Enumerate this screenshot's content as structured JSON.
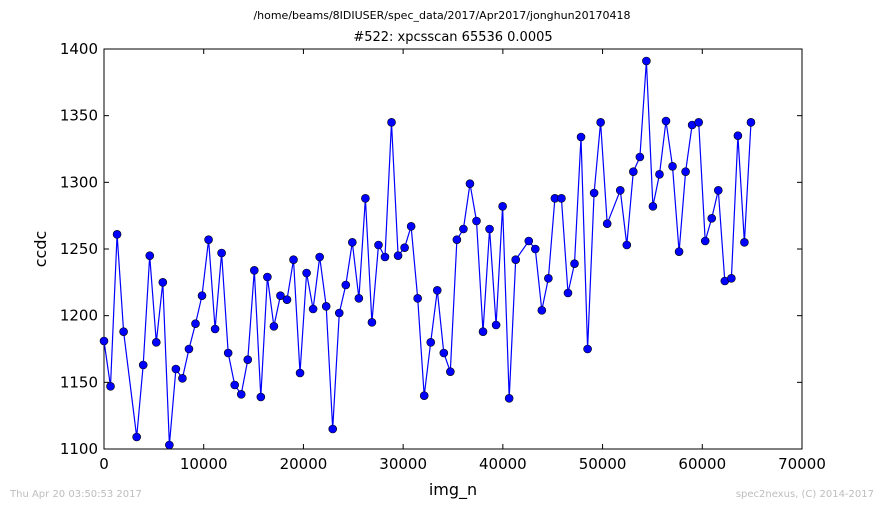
{
  "header": {
    "path": "/home/beams/8IDIUSER/spec_data/2017/Apr2017/jonghun20170418",
    "scan_title": "#522: xpcsscan 65536 0.0005"
  },
  "footer": {
    "timestamp": "Thu Apr 20 03:50:53 2017",
    "credit": "spec2nexus, (C) 2014-2017"
  },
  "chart_data": {
    "type": "line",
    "markers": true,
    "xlabel": "img_n",
    "ylabel": "ccdc",
    "xlim": [
      0,
      70000
    ],
    "ylim": [
      1100,
      1400
    ],
    "xticks": [
      0,
      10000,
      20000,
      30000,
      40000,
      50000,
      60000,
      70000
    ],
    "yticks": [
      1100,
      1150,
      1200,
      1250,
      1300,
      1350,
      1400
    ],
    "grid": false,
    "series_color": "#0000ff",
    "series": [
      {
        "x": [
          0,
          655,
          1311,
          1966,
          3277,
          3932,
          4588,
          5243,
          5898,
          6554,
          7209,
          7864,
          8520,
          9175,
          9830,
          10486,
          11141,
          11796,
          12452,
          13107,
          13763,
          14418,
          15073,
          15729,
          16384,
          17039,
          17695,
          18350,
          19005,
          19661,
          20316,
          20972,
          21627,
          22282,
          22938,
          23593,
          24248,
          24904,
          25559,
          26214,
          26870,
          27525,
          28180,
          28836,
          29491,
          30147,
          30802,
          31457,
          32113,
          32768,
          33423,
          34079,
          34734,
          35389,
          36045,
          36700,
          37356,
          38011,
          38666,
          39322,
          39977,
          40632,
          41288,
          42598,
          43254,
          43909,
          44564,
          45220,
          45875,
          46531,
          47186,
          47841,
          48497,
          49152,
          49807,
          50463,
          51773,
          52429,
          53084,
          53740,
          54395,
          55050,
          55706,
          56361,
          57016,
          57672,
          58327,
          58982,
          59638,
          60293,
          60948,
          61604,
          62259,
          62915,
          63570,
          64225,
          64881
        ],
        "y": [
          1181,
          1147,
          1261,
          1188,
          1109,
          1163,
          1245,
          1180,
          1225,
          1103,
          1160,
          1153,
          1175,
          1194,
          1215,
          1257,
          1190,
          1247,
          1172,
          1148,
          1141,
          1167,
          1234,
          1139,
          1229,
          1192,
          1215,
          1212,
          1242,
          1157,
          1232,
          1205,
          1244,
          1207,
          1115,
          1202,
          1223,
          1255,
          1213,
          1288,
          1195,
          1253,
          1244,
          1345,
          1245,
          1251,
          1267,
          1213,
          1140,
          1180,
          1219,
          1172,
          1158,
          1257,
          1265,
          1299,
          1271,
          1188,
          1265,
          1193,
          1282,
          1138,
          1242,
          1256,
          1250,
          1204,
          1228,
          1288,
          1288,
          1217,
          1239,
          1334,
          1175,
          1292,
          1345,
          1269,
          1294,
          1253,
          1308,
          1319,
          1391,
          1282,
          1306,
          1346,
          1312,
          1248,
          1308,
          1343,
          1345,
          1256,
          1273,
          1294,
          1226,
          1228,
          1335,
          1255,
          1345
        ]
      }
    ]
  }
}
